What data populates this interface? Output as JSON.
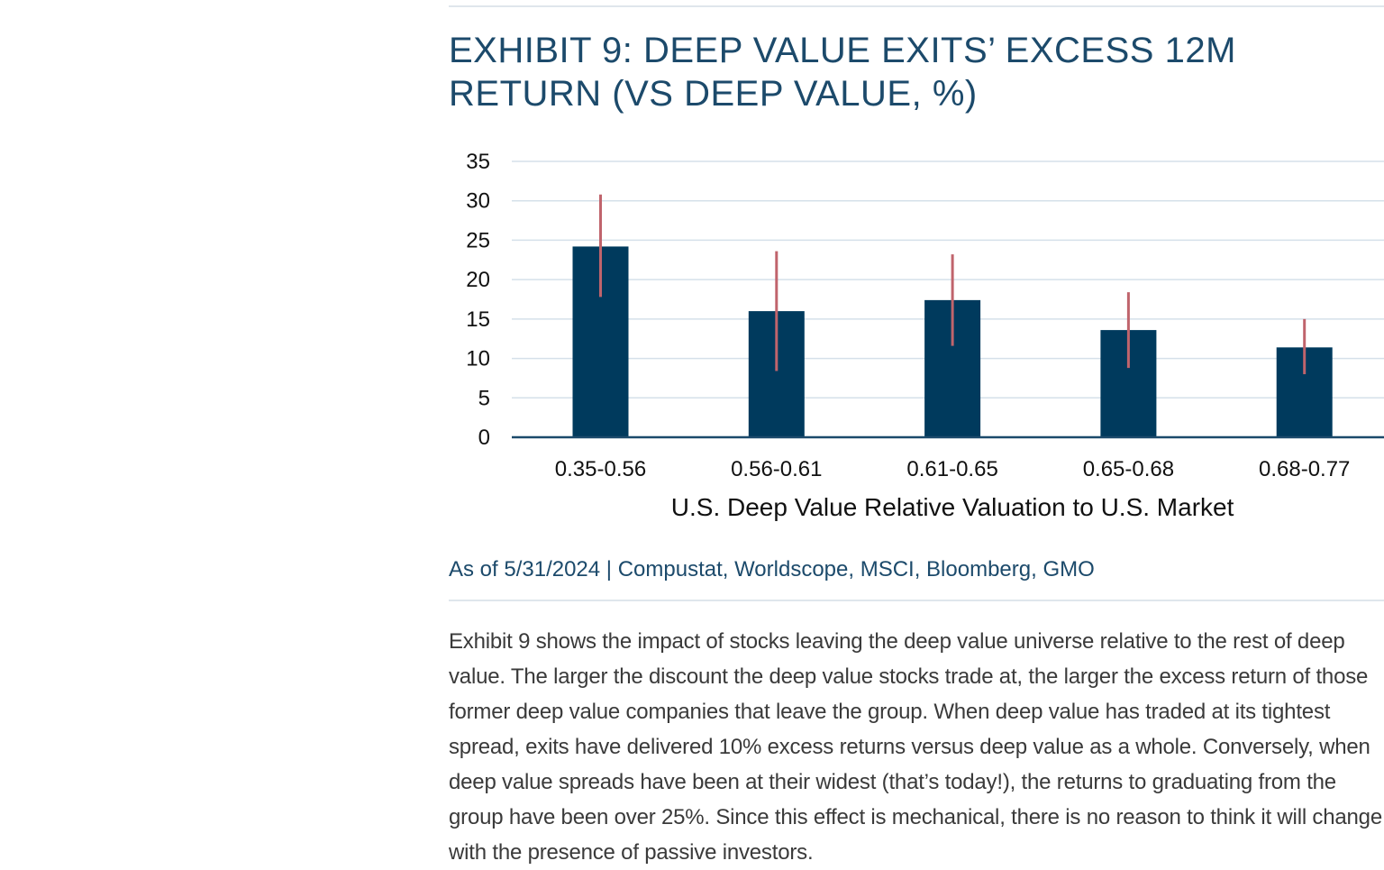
{
  "exhibit": {
    "title": "EXHIBIT 9: DEEP VALUE EXITS’ EXCESS 12M RETURN (VS DEEP VALUE, %)",
    "source": "As of 5/31/2024 | Compustat, Worldscope, MSCI, Bloomberg, GMO"
  },
  "chart_data": {
    "type": "bar",
    "categories": [
      "0.35-0.56",
      "0.56-0.61",
      "0.61-0.65",
      "0.65-0.68",
      "0.68-0.77"
    ],
    "values": [
      24.2,
      16.0,
      17.4,
      13.6,
      11.4
    ],
    "error_low": [
      17.8,
      8.4,
      11.6,
      8.8,
      8.0
    ],
    "error_high": [
      30.8,
      23.6,
      23.2,
      18.4,
      15.0
    ],
    "xlabel": "U.S. Deep Value Relative Valuation to U.S. Market",
    "ylabel": "",
    "ylim": [
      0,
      35
    ],
    "yticks": [
      0,
      5,
      10,
      15,
      20,
      25,
      30,
      35
    ],
    "grid": true,
    "colors": {
      "bar": "#003a5d",
      "error_bar": "#c0646c",
      "grid": "#d5e0ea",
      "axis": "#1c4a6b"
    }
  },
  "body": {
    "paragraph": "Exhibit 9 shows the impact of stocks leaving the deep value universe relative to the rest of deep\nvalue. The larger the discount the deep value stocks trade at, the larger the excess return of those\nformer deep value companies that leave the group. When deep value has traded at its tightest\nspread, exits have delivered 10% excess returns versus deep value as a whole. Conversely, when\ndeep value spreads have been at their widest (that’s today!), the returns to graduating from the\ngroup have been over 25%. Since this effect is mechanical, there is no reason to think it will change\nwith the presence of passive investors."
  }
}
